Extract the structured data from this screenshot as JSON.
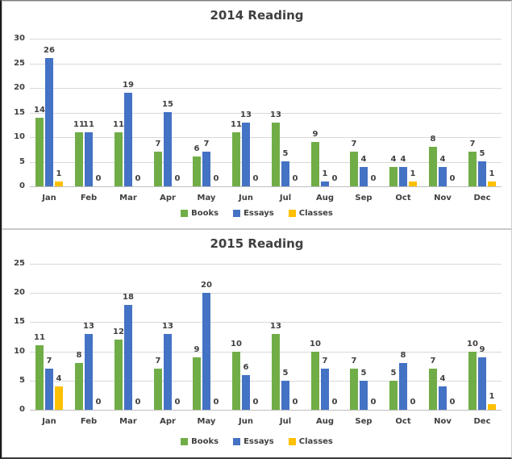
{
  "chart_data": [
    {
      "type": "bar",
      "title": "2014 Reading",
      "categories": [
        "Jan",
        "Feb",
        "Mar",
        "Apr",
        "May",
        "Jun",
        "Jul",
        "Aug",
        "Sep",
        "Oct",
        "Nov",
        "Dec"
      ],
      "series": [
        {
          "name": "Books",
          "color": "#70AD47",
          "values": [
            14,
            11,
            11,
            7,
            6,
            11,
            13,
            9,
            7,
            4,
            8,
            7
          ]
        },
        {
          "name": "Essays",
          "color": "#4472C4",
          "values": [
            26,
            11,
            19,
            15,
            7,
            13,
            5,
            1,
            4,
            4,
            4,
            5
          ]
        },
        {
          "name": "Classes",
          "color": "#FFC000",
          "values": [
            1,
            0,
            0,
            0,
            0,
            0,
            0,
            0,
            0,
            1,
            0,
            1
          ]
        }
      ],
      "xlabel": "",
      "ylabel": "",
      "ylim": [
        0,
        30
      ],
      "yticks": [
        0,
        5,
        10,
        15,
        20,
        25,
        30
      ],
      "grid": true,
      "data_labels": true,
      "legend_position": "bottom"
    },
    {
      "type": "bar",
      "title": "2015 Reading",
      "categories": [
        "Jan",
        "Feb",
        "Mar",
        "Apr",
        "May",
        "Jun",
        "Jul",
        "Aug",
        "Sep",
        "Oct",
        "Nov",
        "Dec"
      ],
      "series": [
        {
          "name": "Books",
          "color": "#70AD47",
          "values": [
            11,
            8,
            12,
            7,
            9,
            10,
            13,
            10,
            7,
            5,
            7,
            10
          ]
        },
        {
          "name": "Essays",
          "color": "#4472C4",
          "values": [
            7,
            13,
            18,
            13,
            20,
            6,
            5,
            7,
            5,
            8,
            4,
            9
          ]
        },
        {
          "name": "Classes",
          "color": "#FFC000",
          "values": [
            4,
            0,
            0,
            0,
            0,
            0,
            0,
            0,
            0,
            0,
            0,
            1
          ]
        }
      ],
      "xlabel": "",
      "ylabel": "",
      "ylim": [
        0,
        25
      ],
      "yticks": [
        0,
        5,
        10,
        15,
        20,
        25
      ],
      "grid": true,
      "data_labels": true,
      "legend_position": "bottom"
    }
  ],
  "colors": {
    "gridline": "#d9d9d9",
    "axis_line": "#bfbfbf",
    "label_text": "#404040",
    "title_text": "#3f3f3f"
  }
}
